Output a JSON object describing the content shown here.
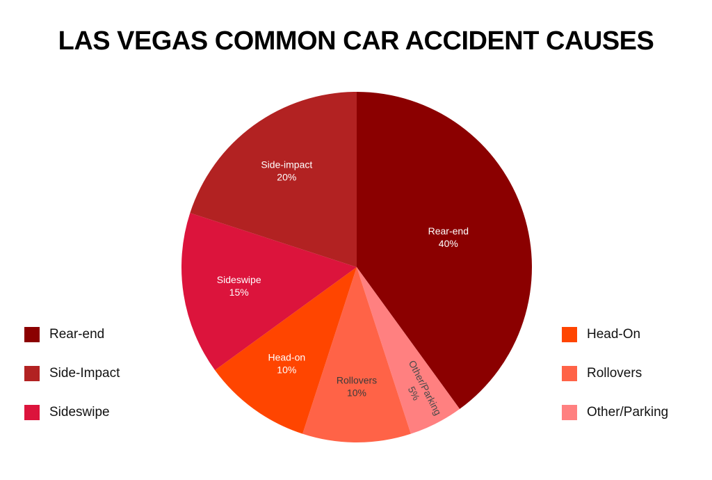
{
  "chart_data": {
    "type": "pie",
    "title": "LAS VEGAS COMMON CAR ACCIDENT CAUSES",
    "slices": [
      {
        "label": "Rear-end",
        "value": 40,
        "value_label": "40%",
        "color": "#8b0000",
        "text_color": "#ffffff"
      },
      {
        "label": "Other/Parking",
        "value": 5,
        "value_label": "5%",
        "color": "#ff8080",
        "text_color": "#4a4a4a"
      },
      {
        "label": "Rollovers",
        "value": 10,
        "value_label": "10%",
        "color": "#ff6347",
        "text_color": "#3a3a3a"
      },
      {
        "label": "Head-on",
        "value": 10,
        "value_label": "10%",
        "color": "#ff4500",
        "text_color": "#ffffff"
      },
      {
        "label": "Sideswipe",
        "value": 15,
        "value_label": "15%",
        "color": "#dc143c",
        "text_color": "#ffffff"
      },
      {
        "label": "Side-impact",
        "value": 20,
        "value_label": "20%",
        "color": "#b22222",
        "text_color": "#ffffff"
      }
    ],
    "legend_left": [
      {
        "label": "Rear-end",
        "color": "#8b0000"
      },
      {
        "label": "Side-Impact",
        "color": "#b22222"
      },
      {
        "label": "Sideswipe",
        "color": "#dc143c"
      }
    ],
    "legend_right": [
      {
        "label": "Head-On",
        "color": "#ff4500"
      },
      {
        "label": "Rollovers",
        "color": "#ff6347"
      },
      {
        "label": "Other/Parking",
        "color": "#ff8080"
      }
    ],
    "start": "12 o'clock",
    "direction": "clockwise"
  }
}
